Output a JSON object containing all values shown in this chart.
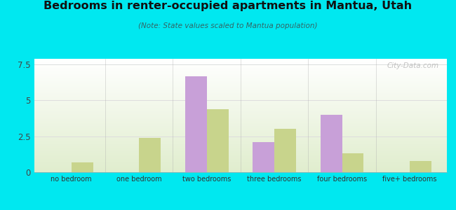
{
  "title": "Bedrooms in renter-occupied apartments in Mantua, Utah",
  "subtitle": "(Note: State values scaled to Mantua population)",
  "categories": [
    "no bedroom",
    "one bedroom",
    "two bedrooms",
    "three bedrooms",
    "four bedrooms",
    "five+ bedrooms"
  ],
  "mantua_values": [
    0,
    0,
    6.7,
    2.1,
    4.0,
    0
  ],
  "utah_values": [
    0.7,
    2.4,
    4.4,
    3.0,
    1.3,
    0.8
  ],
  "mantua_color": "#c8a0d8",
  "utah_color": "#c8d48c",
  "background_color": "#00e8f0",
  "ylim": [
    0,
    7.9
  ],
  "yticks": [
    0,
    2.5,
    5,
    7.5
  ],
  "bar_width": 0.32,
  "watermark": "City-Data.com"
}
